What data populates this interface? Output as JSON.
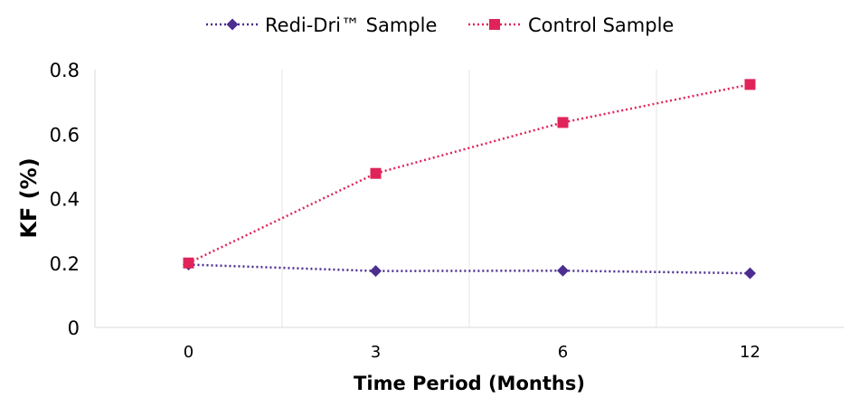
{
  "chart_data": {
    "type": "line",
    "title": "",
    "xlabel": "Time Period (Months)",
    "ylabel": "KF (%)",
    "categories": [
      "0",
      "3",
      "6",
      "12"
    ],
    "ylim": [
      0,
      0.8
    ],
    "yticks": [
      "0",
      "0.2",
      "0.4",
      "0.6",
      "0.8"
    ],
    "grid": "vertical",
    "legend": "top-center",
    "series": [
      {
        "name": "Redi-Dri™ Sample",
        "values": [
          0.195,
          0.175,
          0.176,
          0.168
        ],
        "color": "#4B2E8F",
        "marker": "diamond",
        "line_style": "dotted"
      },
      {
        "name": "Control Sample",
        "values": [
          0.2,
          0.478,
          0.636,
          0.754
        ],
        "color": "#E0245A",
        "marker": "square",
        "line_style": "dotted"
      }
    ]
  }
}
